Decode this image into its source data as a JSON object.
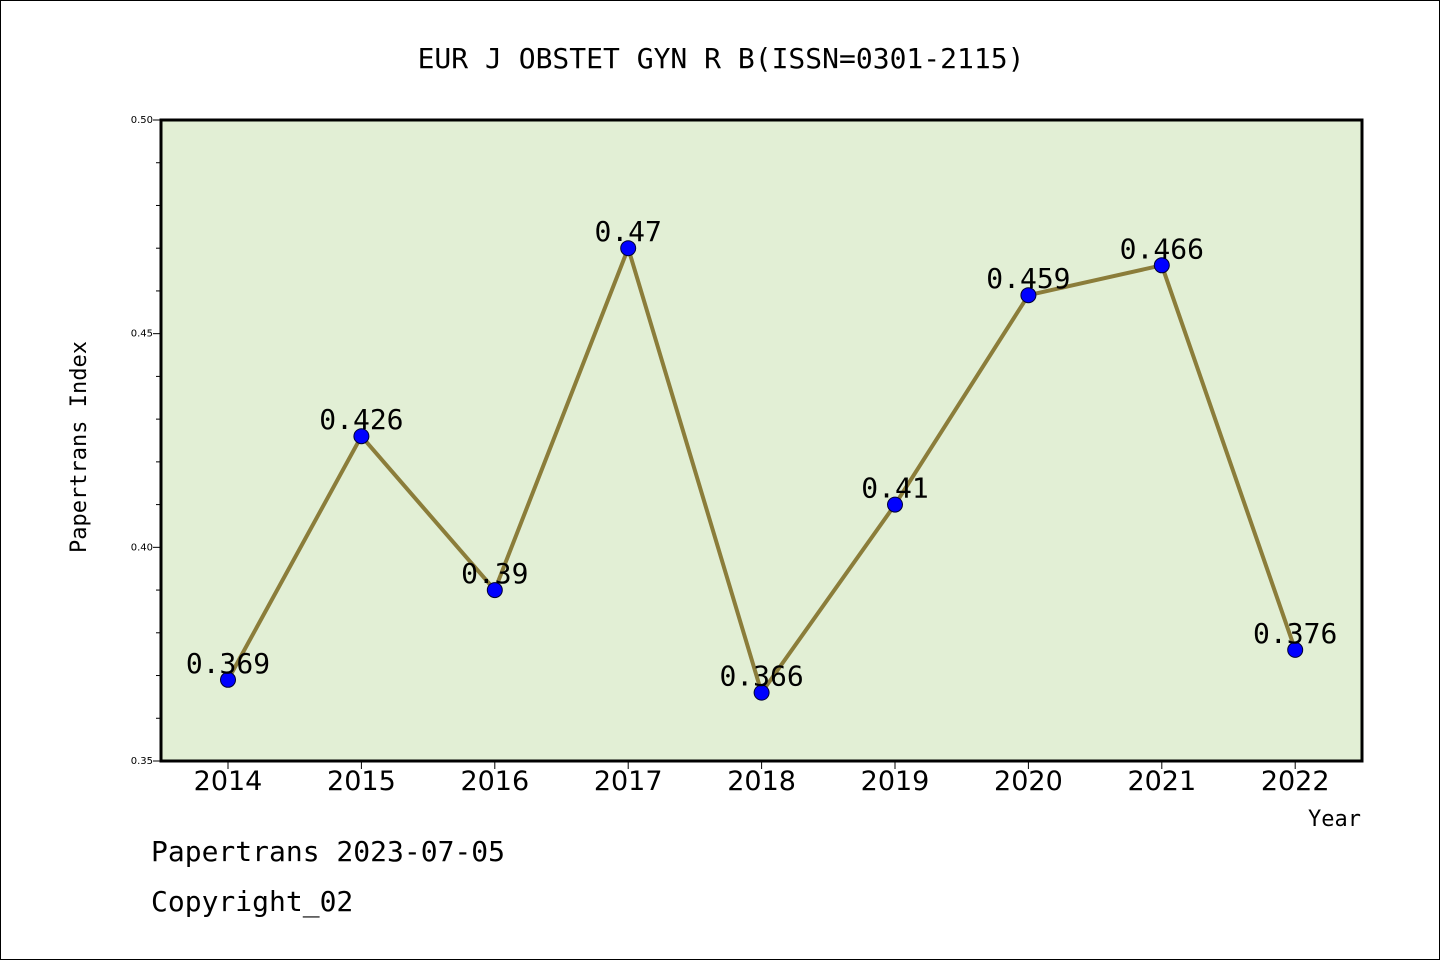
{
  "chart_data": {
    "type": "line",
    "title": "EUR J OBSTET GYN R B(ISSN=0301-2115)",
    "xlabel": "Year",
    "ylabel": "Papertrans Index",
    "categories": [
      "2014",
      "2015",
      "2016",
      "2017",
      "2018",
      "2019",
      "2020",
      "2021",
      "2022"
    ],
    "series": [
      {
        "values": [
          0.369,
          0.426,
          0.39,
          0.47,
          0.366,
          0.41,
          0.459,
          0.466,
          0.376
        ],
        "labels": [
          "0.369",
          "0.426",
          "0.39",
          "0.47",
          "0.366",
          "0.41",
          "0.459",
          "0.466",
          "0.376"
        ]
      }
    ],
    "ylim": [
      0.35,
      0.5
    ],
    "yticks": [
      "0.35",
      "0.40",
      "0.45",
      "0.50"
    ],
    "grid": false,
    "colors": {
      "plot_background": "#e2efd5",
      "line": "#8b7d3a",
      "marker": "#0000ff"
    }
  },
  "footer": {
    "line1": "Papertrans 2023-07-05",
    "line2": "Copyright_02"
  }
}
